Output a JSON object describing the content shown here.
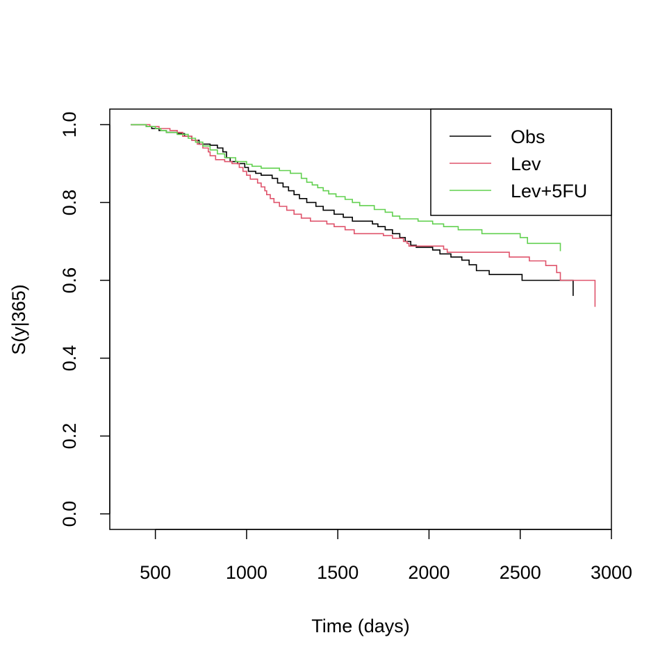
{
  "chart_data": {
    "type": "line",
    "title": "",
    "xlabel": "Time (days)",
    "ylabel": "S(y|365)",
    "xlim": [
      250,
      3000
    ],
    "ylim": [
      -0.04,
      1.04
    ],
    "x_ticks": [
      500,
      1000,
      1500,
      2000,
      2500,
      3000
    ],
    "y_ticks": [
      0.0,
      0.2,
      0.4,
      0.6,
      0.8,
      1.0
    ],
    "x_tick_labels": [
      "500",
      "1000",
      "1500",
      "2000",
      "2500",
      "3000"
    ],
    "y_tick_labels": [
      "0.0",
      "0.2",
      "0.4",
      "0.6",
      "0.8",
      "1.0"
    ],
    "grid": false,
    "legend_position": "top-right",
    "step": true,
    "series": [
      {
        "name": "Obs",
        "color": "#000000",
        "points": [
          [
            365,
            1.0
          ],
          [
            420,
            1.0
          ],
          [
            450,
            0.995
          ],
          [
            480,
            0.99
          ],
          [
            520,
            0.985
          ],
          [
            560,
            0.98
          ],
          [
            620,
            0.977
          ],
          [
            660,
            0.97
          ],
          [
            700,
            0.96
          ],
          [
            740,
            0.95
          ],
          [
            800,
            0.947
          ],
          [
            840,
            0.94
          ],
          [
            870,
            0.93
          ],
          [
            890,
            0.915
          ],
          [
            910,
            0.905
          ],
          [
            950,
            0.9
          ],
          [
            990,
            0.89
          ],
          [
            1010,
            0.88
          ],
          [
            1050,
            0.875
          ],
          [
            1080,
            0.87
          ],
          [
            1140,
            0.862
          ],
          [
            1170,
            0.85
          ],
          [
            1200,
            0.84
          ],
          [
            1230,
            0.83
          ],
          [
            1260,
            0.82
          ],
          [
            1290,
            0.81
          ],
          [
            1330,
            0.8
          ],
          [
            1380,
            0.79
          ],
          [
            1420,
            0.78
          ],
          [
            1480,
            0.77
          ],
          [
            1530,
            0.762
          ],
          [
            1580,
            0.752
          ],
          [
            1690,
            0.745
          ],
          [
            1720,
            0.738
          ],
          [
            1760,
            0.73
          ],
          [
            1800,
            0.72
          ],
          [
            1840,
            0.71
          ],
          [
            1870,
            0.7
          ],
          [
            1900,
            0.69
          ],
          [
            1930,
            0.685
          ],
          [
            2020,
            0.678
          ],
          [
            2060,
            0.668
          ],
          [
            2120,
            0.66
          ],
          [
            2180,
            0.652
          ],
          [
            2220,
            0.64
          ],
          [
            2260,
            0.625
          ],
          [
            2330,
            0.615
          ],
          [
            2510,
            0.6
          ],
          [
            2790,
            0.6
          ]
        ],
        "end": [
          2790,
          0.56
        ]
      },
      {
        "name": "Lev",
        "color": "#df536b",
        "points": [
          [
            365,
            1.0
          ],
          [
            470,
            0.995
          ],
          [
            520,
            0.99
          ],
          [
            580,
            0.985
          ],
          [
            620,
            0.98
          ],
          [
            650,
            0.97
          ],
          [
            700,
            0.96
          ],
          [
            730,
            0.95
          ],
          [
            760,
            0.94
          ],
          [
            790,
            0.93
          ],
          [
            800,
            0.92
          ],
          [
            830,
            0.91
          ],
          [
            880,
            0.905
          ],
          [
            920,
            0.9
          ],
          [
            960,
            0.89
          ],
          [
            980,
            0.88
          ],
          [
            1000,
            0.87
          ],
          [
            1020,
            0.86
          ],
          [
            1060,
            0.85
          ],
          [
            1080,
            0.84
          ],
          [
            1100,
            0.83
          ],
          [
            1110,
            0.82
          ],
          [
            1130,
            0.81
          ],
          [
            1150,
            0.8
          ],
          [
            1180,
            0.79
          ],
          [
            1220,
            0.78
          ],
          [
            1260,
            0.77
          ],
          [
            1300,
            0.76
          ],
          [
            1350,
            0.752
          ],
          [
            1440,
            0.745
          ],
          [
            1480,
            0.738
          ],
          [
            1540,
            0.73
          ],
          [
            1590,
            0.72
          ],
          [
            1750,
            0.715
          ],
          [
            1800,
            0.708
          ],
          [
            1860,
            0.7
          ],
          [
            1880,
            0.695
          ],
          [
            1890,
            0.688
          ],
          [
            2080,
            0.68
          ],
          [
            2100,
            0.672
          ],
          [
            2440,
            0.66
          ],
          [
            2550,
            0.65
          ],
          [
            2640,
            0.638
          ],
          [
            2700,
            0.62
          ],
          [
            2720,
            0.6
          ],
          [
            2910,
            0.6
          ]
        ],
        "end": [
          2910,
          0.532
        ]
      },
      {
        "name": "Lev+5FU",
        "color": "#61d04f",
        "points": [
          [
            365,
            1.0
          ],
          [
            450,
            0.995
          ],
          [
            500,
            0.99
          ],
          [
            530,
            0.985
          ],
          [
            560,
            0.98
          ],
          [
            620,
            0.975
          ],
          [
            680,
            0.965
          ],
          [
            720,
            0.955
          ],
          [
            760,
            0.945
          ],
          [
            800,
            0.935
          ],
          [
            840,
            0.925
          ],
          [
            880,
            0.915
          ],
          [
            940,
            0.905
          ],
          [
            1000,
            0.898
          ],
          [
            1030,
            0.893
          ],
          [
            1080,
            0.888
          ],
          [
            1150,
            0.888
          ],
          [
            1180,
            0.882
          ],
          [
            1240,
            0.875
          ],
          [
            1300,
            0.862
          ],
          [
            1330,
            0.852
          ],
          [
            1360,
            0.845
          ],
          [
            1390,
            0.838
          ],
          [
            1420,
            0.83
          ],
          [
            1450,
            0.822
          ],
          [
            1490,
            0.815
          ],
          [
            1540,
            0.808
          ],
          [
            1580,
            0.8
          ],
          [
            1620,
            0.792
          ],
          [
            1700,
            0.782
          ],
          [
            1760,
            0.775
          ],
          [
            1800,
            0.765
          ],
          [
            1840,
            0.758
          ],
          [
            1940,
            0.752
          ],
          [
            2020,
            0.745
          ],
          [
            2080,
            0.738
          ],
          [
            2160,
            0.73
          ],
          [
            2290,
            0.72
          ],
          [
            2500,
            0.71
          ],
          [
            2540,
            0.695
          ],
          [
            2720,
            0.695
          ]
        ],
        "end": [
          2720,
          0.675
        ]
      }
    ]
  }
}
